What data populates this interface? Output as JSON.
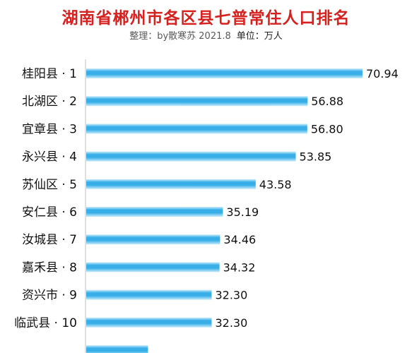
{
  "chart_data": {
    "type": "bar",
    "orientation": "horizontal",
    "title": "湖南省郴州市各区县七普常住人口排名",
    "subtitle": "整理：by散寒苏 2021.8",
    "unit_label": "单位：万人",
    "categories": [
      "桂阳县 · 1",
      "北湖区 · 2",
      "宜章县 · 3",
      "永兴县 · 4",
      "苏仙区 · 5",
      "安仁县 · 6",
      "汝城县 · 7",
      "嘉禾县 · 8",
      "资兴市 · 9",
      "临武县 · 10",
      ""
    ],
    "values": [
      70.94,
      56.88,
      56.8,
      53.85,
      43.58,
      35.19,
      34.46,
      34.32,
      32.3,
      32.3,
      null
    ],
    "value_labels": [
      "70.94",
      "56.88",
      "56.80",
      "53.85",
      "43.58",
      "35.19",
      "34.46",
      "34.32",
      "32.30",
      "32.30",
      ""
    ],
    "xlim": [
      0,
      80
    ],
    "grid": false,
    "legend": "none",
    "colors": {
      "title": "#d6221f",
      "bar_light": "#c9ecfb",
      "bar_mid": "#37aee8",
      "bar_dark": "#1685c8",
      "axis": "#bfbfbf",
      "text": "#111111"
    }
  }
}
